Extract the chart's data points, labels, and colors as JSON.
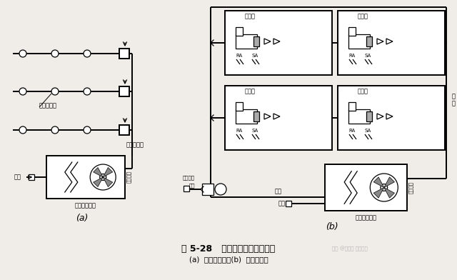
{
  "bg_color": "#f0ede8",
  "title": "图 5-28   诱导型变风量空调系统",
  "subtitle": "(a)  直流式系统；(b)  回风式系统",
  "label_a": "(a)",
  "label_b": "(b)",
  "fig_width": 6.4,
  "fig_height": 3.92,
  "dpi": 100,
  "watermark": "知乎 @暖通设 暖通老师"
}
